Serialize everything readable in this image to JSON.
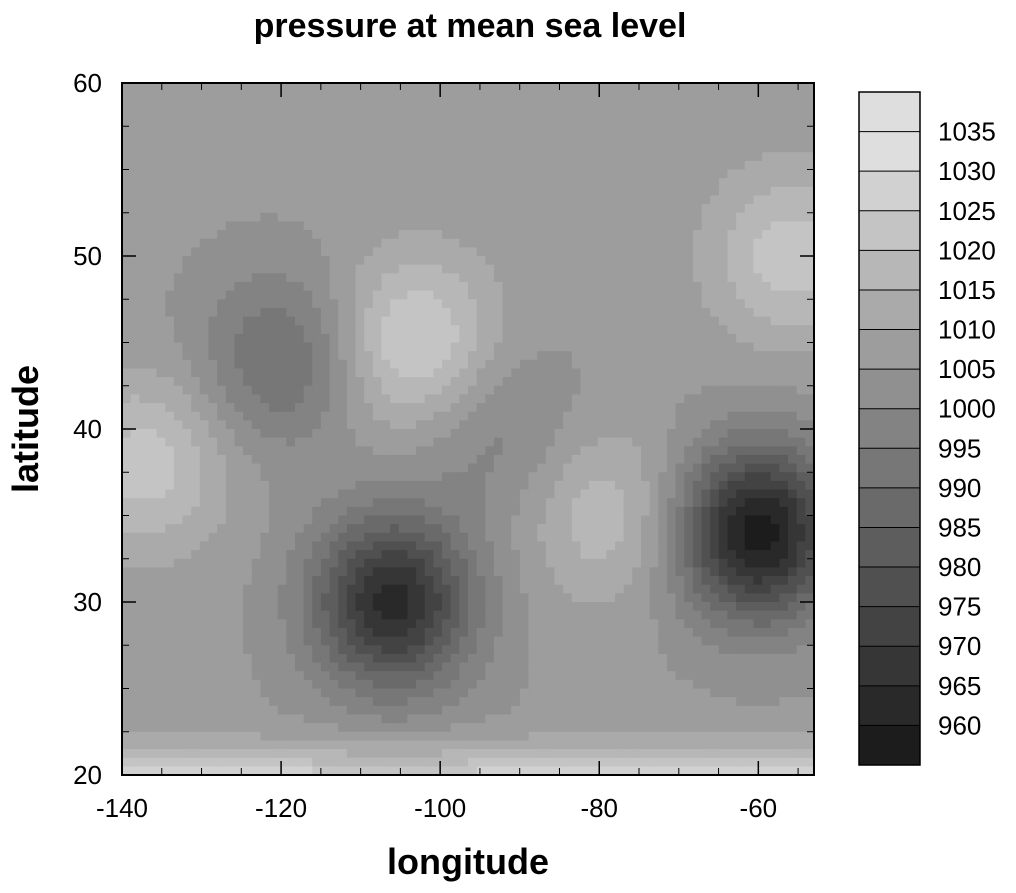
{
  "chart_data": {
    "type": "heatmap",
    "title": "pressure at mean sea level",
    "xlabel": "longitude",
    "ylabel": "latitude",
    "xlim": [
      -140,
      -53
    ],
    "ylim": [
      20,
      60
    ],
    "x_ticks": [
      -140,
      -120,
      -100,
      -80,
      -60
    ],
    "y_ticks": [
      20,
      30,
      40,
      50,
      60
    ],
    "x_tick_labels": [
      "-140",
      "-120",
      "-100",
      "-80",
      "-60"
    ],
    "y_tick_labels": [
      "20",
      "30",
      "40",
      "50",
      "60"
    ],
    "legend_placement": "right",
    "colorbar": {
      "labels": [
        "1035",
        "1030",
        "1025",
        "1020",
        "1015",
        "1010",
        "1005",
        "1000",
        "995",
        "990",
        "985",
        "980",
        "975",
        "970",
        "965",
        "960"
      ],
      "min_color": "#1c1c1c",
      "max_color": "#dedede"
    },
    "contour_levels": [
      960,
      965,
      970,
      975,
      980,
      985,
      990,
      995,
      1000,
      1005,
      1010,
      1015,
      1020,
      1025,
      1030,
      1035
    ],
    "background_pressure": 1011,
    "pressure_features": [
      {
        "type": "low",
        "lon": -106,
        "lat": 30,
        "center": 968
      },
      {
        "type": "low",
        "lon": -60,
        "lat": 34,
        "center": 962
      },
      {
        "type": "low",
        "lon": -120,
        "lat": 44,
        "center": 994
      },
      {
        "type": "low",
        "lon": -93,
        "lat": 40,
        "center": 1002
      },
      {
        "type": "high",
        "lon": -103,
        "lat": 45,
        "center": 1032
      },
      {
        "type": "high",
        "lon": -137,
        "lat": 38,
        "center": 1028
      },
      {
        "type": "high",
        "lon": -56,
        "lat": 50,
        "center": 1028
      },
      {
        "type": "high",
        "lon": -79,
        "lat": 35,
        "center": 1024
      }
    ]
  }
}
